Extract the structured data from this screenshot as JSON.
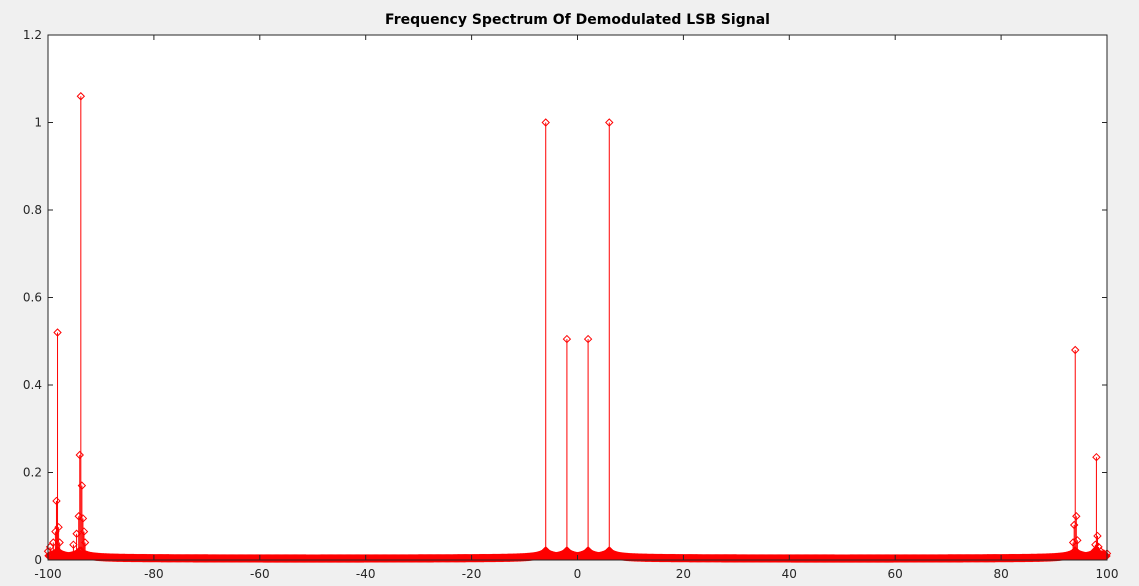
{
  "chart_data": {
    "type": "stem",
    "title": "Frequency Spectrum Of Demodulated LSB Signal",
    "xlabel": "",
    "ylabel": "",
    "xlim": [
      -100,
      100
    ],
    "ylim": [
      0,
      1.2
    ],
    "xticks": [
      -100,
      -80,
      -60,
      -40,
      -20,
      0,
      20,
      40,
      60,
      80,
      100
    ],
    "yticks": [
      0,
      0.2,
      0.4,
      0.6,
      0.8,
      1,
      1.2
    ],
    "xtick_labels": [
      "-100",
      "-80",
      "-60",
      "-40",
      "-20",
      "0",
      "20",
      "40",
      "60",
      "80",
      "100"
    ],
    "ytick_labels": [
      "0",
      "0.2",
      "0.4",
      "0.6",
      "0.8",
      "1",
      "1.2"
    ],
    "series_color": "#ff0000",
    "marker": "diamond",
    "grid": false,
    "x_step": 0.1,
    "peaks": [
      {
        "x": -100,
        "y": 0.02
      },
      {
        "x": -99.6,
        "y": 0.03
      },
      {
        "x": -99.0,
        "y": 0.04
      },
      {
        "x": -98.6,
        "y": 0.065
      },
      {
        "x": -98.4,
        "y": 0.135
      },
      {
        "x": -98.2,
        "y": 0.52
      },
      {
        "x": -98.0,
        "y": 0.075
      },
      {
        "x": -97.8,
        "y": 0.04
      },
      {
        "x": -95.2,
        "y": 0.035
      },
      {
        "x": -94.6,
        "y": 0.06
      },
      {
        "x": -94.2,
        "y": 0.1
      },
      {
        "x": -94.0,
        "y": 0.24
      },
      {
        "x": -93.8,
        "y": 1.06
      },
      {
        "x": -93.6,
        "y": 0.17
      },
      {
        "x": -93.4,
        "y": 0.095
      },
      {
        "x": -93.2,
        "y": 0.065
      },
      {
        "x": -93.0,
        "y": 0.04
      },
      {
        "x": -6.0,
        "y": 1.0
      },
      {
        "x": -2.0,
        "y": 0.505
      },
      {
        "x": 2.0,
        "y": 0.505
      },
      {
        "x": 6.0,
        "y": 1.0
      },
      {
        "x": 93.6,
        "y": 0.04
      },
      {
        "x": 93.8,
        "y": 0.08
      },
      {
        "x": 94.0,
        "y": 0.48
      },
      {
        "x": 94.2,
        "y": 0.1
      },
      {
        "x": 94.4,
        "y": 0.045
      },
      {
        "x": 97.6,
        "y": 0.02
      },
      {
        "x": 97.8,
        "y": 0.035
      },
      {
        "x": 98.0,
        "y": 0.235
      },
      {
        "x": 98.2,
        "y": 0.055
      },
      {
        "x": 98.4,
        "y": 0.03
      },
      {
        "x": 98.8,
        "y": 0.02
      },
      {
        "x": 99.4,
        "y": 0.015
      },
      {
        "x": 100.0,
        "y": 0.015
      }
    ]
  }
}
